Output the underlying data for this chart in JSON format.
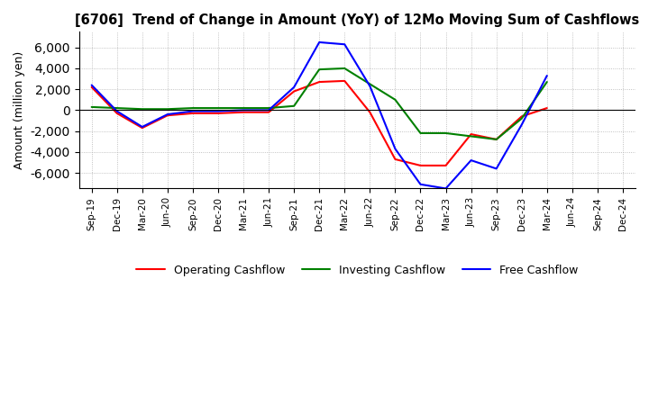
{
  "title": "[6706]  Trend of Change in Amount (YoY) of 12Mo Moving Sum of Cashflows",
  "ylabel": "Amount (million yen)",
  "ylim": [
    -7500,
    7500
  ],
  "yticks": [
    -6000,
    -4000,
    -2000,
    0,
    2000,
    4000,
    6000
  ],
  "x_labels": [
    "Sep-19",
    "Dec-19",
    "Mar-20",
    "Jun-20",
    "Sep-20",
    "Dec-20",
    "Mar-21",
    "Jun-21",
    "Sep-21",
    "Dec-21",
    "Mar-22",
    "Jun-22",
    "Sep-22",
    "Dec-22",
    "Mar-23",
    "Jun-23",
    "Sep-23",
    "Dec-23",
    "Mar-24",
    "Jun-24",
    "Sep-24",
    "Dec-24"
  ],
  "operating": [
    2200,
    -300,
    -1700,
    -500,
    -300,
    -300,
    -200,
    -200,
    1800,
    2700,
    2800,
    -200,
    -4700,
    -5300,
    -5300,
    -2300,
    -2800,
    -600,
    200,
    null,
    null,
    null
  ],
  "investing": [
    300,
    200,
    100,
    100,
    200,
    200,
    200,
    200,
    400,
    3900,
    4000,
    2500,
    1000,
    -2200,
    -2200,
    -2500,
    -2800,
    -800,
    2700,
    null,
    null,
    null
  ],
  "free": [
    2400,
    -100,
    -1600,
    -400,
    -100,
    -100,
    0,
    0,
    2200,
    6500,
    6300,
    2300,
    -3700,
    -7100,
    -7500,
    -4800,
    -5600,
    -1400,
    3300,
    null,
    null,
    null
  ],
  "line_colors": {
    "operating": "#ff0000",
    "investing": "#008000",
    "free": "#0000ff"
  },
  "legend_labels": [
    "Operating Cashflow",
    "Investing Cashflow",
    "Free Cashflow"
  ],
  "background_color": "#ffffff",
  "grid_color": "#b0b0b0"
}
